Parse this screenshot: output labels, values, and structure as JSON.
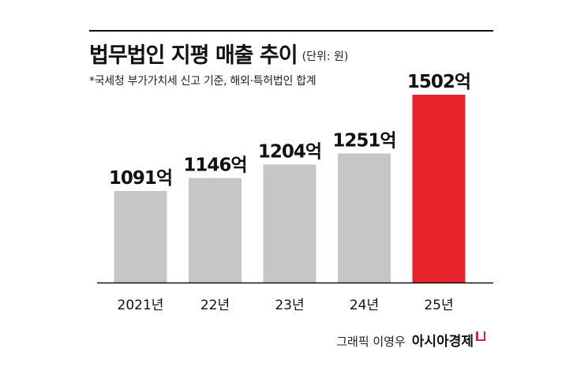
{
  "title": "법무법인 지평 매출 추이",
  "unit_note": "(단위: 원)",
  "footnote": "*국세청 부가가치세 신고 기준, 해외·특허법인 합계",
  "credit": "그래픽 이영우",
  "brand": "아시아경제",
  "colors": {
    "bar_default": "#c6c6c6",
    "bar_highlight": "#e6222a",
    "axis": "#111111",
    "text": "#111111"
  },
  "chart_data": {
    "type": "bar",
    "categories": [
      "2021년",
      "22년",
      "23년",
      "24년",
      "25년"
    ],
    "values": [
      1091,
      1146,
      1204,
      1251,
      1502
    ],
    "data_labels": [
      "1091억",
      "1146억",
      "1204억",
      "1251억",
      "1502억"
    ],
    "highlight_index": 4,
    "title": "법무법인 지평 매출 추이",
    "xlabel": "",
    "ylabel": "",
    "ylim": [
      700,
      1502
    ],
    "grid": false
  }
}
